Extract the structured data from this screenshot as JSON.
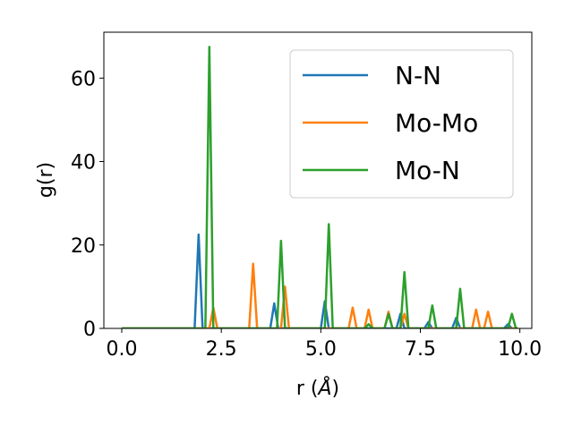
{
  "chart_data": {
    "type": "line",
    "xlabel_main": "r (",
    "xlabel_unit": "Å",
    "xlabel_close": ")",
    "ylabel": "g(r)",
    "xlim": [
      -0.45,
      10.3
    ],
    "ylim": [
      0,
      71
    ],
    "xticks": [
      0.0,
      2.5,
      5.0,
      7.5,
      10.0
    ],
    "xtick_labels": [
      "0.0",
      "2.5",
      "5.0",
      "7.5",
      "10.0"
    ],
    "yticks": [
      0,
      20,
      40,
      60
    ],
    "ytick_labels": [
      "0",
      "20",
      "40",
      "60"
    ],
    "legend_position": "upper right",
    "series": [
      {
        "name": "N-N",
        "color": "#1f77b4",
        "peaks": [
          [
            1.93,
            22.5
          ],
          [
            3.83,
            6
          ],
          [
            5.1,
            6.5
          ],
          [
            7.0,
            3.5
          ],
          [
            7.7,
            1.5
          ],
          [
            8.4,
            2.5
          ],
          [
            9.7,
            1
          ]
        ]
      },
      {
        "name": "Mo-Mo",
        "color": "#ff7f0e",
        "peaks": [
          [
            2.3,
            5
          ],
          [
            3.3,
            15.5
          ],
          [
            4.1,
            10
          ],
          [
            5.8,
            5
          ],
          [
            6.2,
            4.5
          ],
          [
            6.7,
            4
          ],
          [
            7.1,
            3.5
          ],
          [
            8.9,
            4.5
          ],
          [
            9.2,
            4
          ]
        ]
      },
      {
        "name": "Mo-N",
        "color": "#2ca02c",
        "peaks": [
          [
            2.2,
            67.5
          ],
          [
            4.0,
            21
          ],
          [
            5.2,
            25
          ],
          [
            6.2,
            1
          ],
          [
            6.7,
            3.5
          ],
          [
            7.1,
            13.5
          ],
          [
            7.8,
            5.5
          ],
          [
            8.5,
            9.5
          ],
          [
            9.8,
            3.5
          ]
        ]
      }
    ],
    "x_end": 9.95,
    "bin_width": 0.1
  }
}
